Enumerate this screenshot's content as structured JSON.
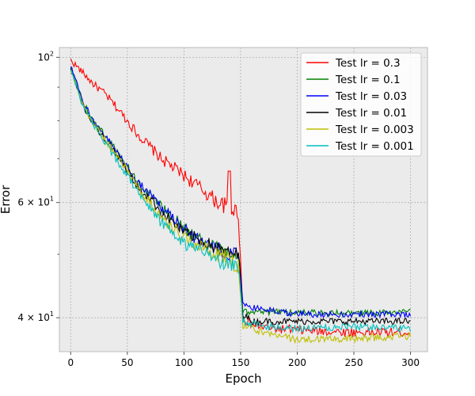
{
  "chart_data": {
    "type": "line",
    "title": "",
    "xlabel": "Epoch",
    "ylabel": "Error",
    "xlim": [
      -10,
      315
    ],
    "ylim": [
      35.5,
      103.5
    ],
    "yscale": "log",
    "grid": true,
    "legend_position": "top-right",
    "background_color": "#ebebeb",
    "x_ticks": [
      0,
      50,
      100,
      150,
      200,
      250,
      300
    ],
    "y_ticks": [
      {
        "value": 40,
        "label": "4 × 10",
        "exp": "1"
      },
      {
        "value": 60,
        "label": "6 × 10",
        "exp": "1"
      },
      {
        "value": 100,
        "label": "10",
        "exp": "2"
      }
    ],
    "y_minor_ticks": [
      50,
      70,
      80,
      90
    ],
    "series": [
      {
        "name": "Test lr = 0.3",
        "color": "#ff0000",
        "keypoints": [
          [
            0,
            99
          ],
          [
            5,
            97
          ],
          [
            10,
            95
          ],
          [
            20,
            91
          ],
          [
            30,
            88
          ],
          [
            40,
            84
          ],
          [
            50,
            80
          ],
          [
            60,
            76
          ],
          [
            70,
            73
          ],
          [
            80,
            70
          ],
          [
            90,
            68
          ],
          [
            100,
            66
          ],
          [
            110,
            64
          ],
          [
            120,
            62
          ],
          [
            130,
            60
          ],
          [
            140,
            59
          ],
          [
            148,
            58
          ],
          [
            152,
            40
          ],
          [
            160,
            39
          ],
          [
            180,
            38.5
          ],
          [
            200,
            38.3
          ],
          [
            250,
            38
          ],
          [
            300,
            38
          ]
        ],
        "noise": 1.8,
        "spike": {
          "x": 140,
          "y": 67
        }
      },
      {
        "name": "Test lr = 0.1",
        "color": "#008000",
        "keypoints": [
          [
            0,
            97
          ],
          [
            10,
            86
          ],
          [
            20,
            80
          ],
          [
            30,
            76
          ],
          [
            40,
            72
          ],
          [
            50,
            68
          ],
          [
            60,
            64
          ],
          [
            70,
            62
          ],
          [
            80,
            59
          ],
          [
            90,
            57
          ],
          [
            100,
            55
          ],
          [
            110,
            53
          ],
          [
            120,
            52
          ],
          [
            130,
            51
          ],
          [
            140,
            50
          ],
          [
            148,
            50
          ],
          [
            152,
            41
          ],
          [
            160,
            40.8
          ],
          [
            200,
            40.8
          ],
          [
            250,
            40.6
          ],
          [
            300,
            40.8
          ]
        ],
        "noise": 1.3
      },
      {
        "name": "Test lr = 0.03",
        "color": "#0000ff",
        "keypoints": [
          [
            0,
            97
          ],
          [
            10,
            86
          ],
          [
            20,
            80
          ],
          [
            30,
            76
          ],
          [
            40,
            72
          ],
          [
            50,
            68
          ],
          [
            60,
            64
          ],
          [
            70,
            62
          ],
          [
            80,
            59
          ],
          [
            90,
            57
          ],
          [
            100,
            55
          ],
          [
            110,
            53
          ],
          [
            120,
            52
          ],
          [
            130,
            51
          ],
          [
            140,
            50
          ],
          [
            148,
            50
          ],
          [
            152,
            42
          ],
          [
            160,
            41.5
          ],
          [
            200,
            40.5
          ],
          [
            250,
            40.5
          ],
          [
            300,
            40.5
          ]
        ],
        "noise": 1.3
      },
      {
        "name": "Test lr = 0.01",
        "color": "#000000",
        "keypoints": [
          [
            0,
            96
          ],
          [
            10,
            85
          ],
          [
            20,
            79
          ],
          [
            30,
            75
          ],
          [
            40,
            71
          ],
          [
            50,
            67
          ],
          [
            60,
            63
          ],
          [
            70,
            61
          ],
          [
            80,
            58
          ],
          [
            90,
            56
          ],
          [
            100,
            54
          ],
          [
            110,
            53
          ],
          [
            120,
            52
          ],
          [
            130,
            51
          ],
          [
            140,
            50
          ],
          [
            148,
            50
          ],
          [
            152,
            40.5
          ],
          [
            160,
            39.5
          ],
          [
            200,
            39.5
          ],
          [
            250,
            39.5
          ],
          [
            300,
            39.5
          ]
        ],
        "noise": 1.3
      },
      {
        "name": "Test lr = 0.003",
        "color": "#bfbf00",
        "keypoints": [
          [
            0,
            96
          ],
          [
            10,
            85
          ],
          [
            20,
            79
          ],
          [
            30,
            75
          ],
          [
            40,
            71
          ],
          [
            50,
            67
          ],
          [
            60,
            63
          ],
          [
            70,
            60
          ],
          [
            80,
            57
          ],
          [
            90,
            55
          ],
          [
            100,
            53
          ],
          [
            110,
            52
          ],
          [
            120,
            51
          ],
          [
            130,
            50
          ],
          [
            140,
            49
          ],
          [
            148,
            48
          ],
          [
            152,
            39
          ],
          [
            170,
            38
          ],
          [
            200,
            37
          ],
          [
            250,
            37.2
          ],
          [
            300,
            37.5
          ]
        ],
        "noise": 1.4
      },
      {
        "name": "Test lr = 0.001",
        "color": "#00bfbf",
        "keypoints": [
          [
            0,
            96
          ],
          [
            10,
            85
          ],
          [
            20,
            79
          ],
          [
            30,
            74
          ],
          [
            40,
            70
          ],
          [
            50,
            66
          ],
          [
            60,
            62
          ],
          [
            70,
            59
          ],
          [
            80,
            56
          ],
          [
            90,
            54
          ],
          [
            100,
            52
          ],
          [
            110,
            51
          ],
          [
            120,
            50
          ],
          [
            130,
            49
          ],
          [
            140,
            48
          ],
          [
            148,
            48
          ],
          [
            152,
            39.5
          ],
          [
            170,
            38.8
          ],
          [
            200,
            38.5
          ],
          [
            250,
            38.8
          ],
          [
            300,
            38.5
          ]
        ],
        "noise": 1.4
      }
    ]
  }
}
